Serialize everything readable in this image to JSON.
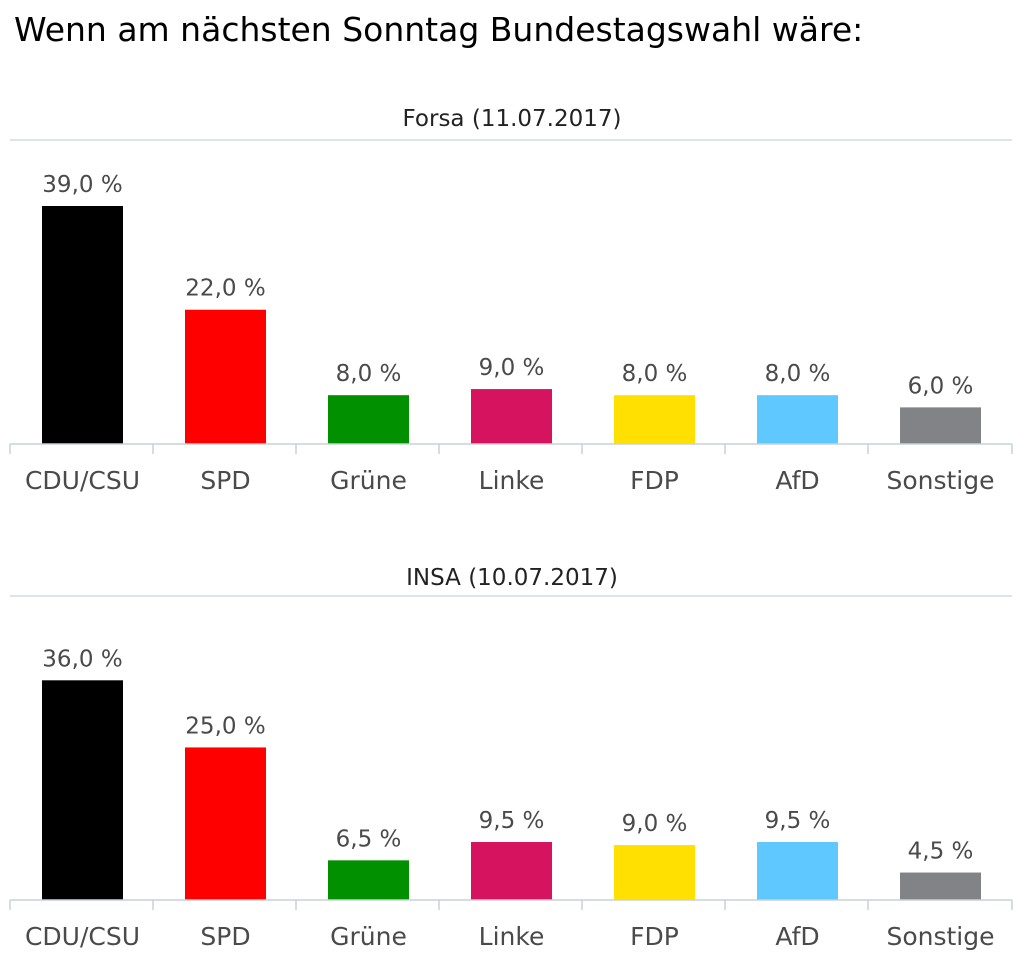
{
  "page": {
    "title": "Wenn am nächsten Sonntag Bundestagswahl wäre:"
  },
  "chart_data": [
    {
      "type": "bar",
      "title": "Forsa (11.07.2017)",
      "categories": [
        "CDU/CSU",
        "SPD",
        "Grüne",
        "Linke",
        "FDP",
        "AfD",
        "Sonstige"
      ],
      "values": [
        39.0,
        22.0,
        8.0,
        9.0,
        8.0,
        8.0,
        6.0
      ],
      "value_labels": [
        "39,0 %",
        "22,0 %",
        "8,0 %",
        "9,0 %",
        "8,0 %",
        "8,0 %",
        "6,0 %"
      ],
      "colors": [
        "#000000",
        "#ff0000",
        "#009000",
        "#d6135e",
        "#ffe000",
        "#5fc8ff",
        "#818386"
      ],
      "xlabel": "",
      "ylabel": "",
      "grid": false,
      "ylim": [
        0,
        39
      ]
    },
    {
      "type": "bar",
      "title": "INSA (10.07.2017)",
      "categories": [
        "CDU/CSU",
        "SPD",
        "Grüne",
        "Linke",
        "FDP",
        "AfD",
        "Sonstige"
      ],
      "values": [
        36.0,
        25.0,
        6.5,
        9.5,
        9.0,
        9.5,
        4.5
      ],
      "value_labels": [
        "36,0 %",
        "25,0 %",
        "6,5 %",
        "9,5 %",
        "9,0 %",
        "9,5 %",
        "4,5 %"
      ],
      "colors": [
        "#000000",
        "#ff0000",
        "#009000",
        "#d6135e",
        "#ffe000",
        "#5fc8ff",
        "#818386"
      ],
      "xlabel": "",
      "ylabel": "",
      "grid": false,
      "ylim": [
        0,
        39
      ]
    }
  ]
}
